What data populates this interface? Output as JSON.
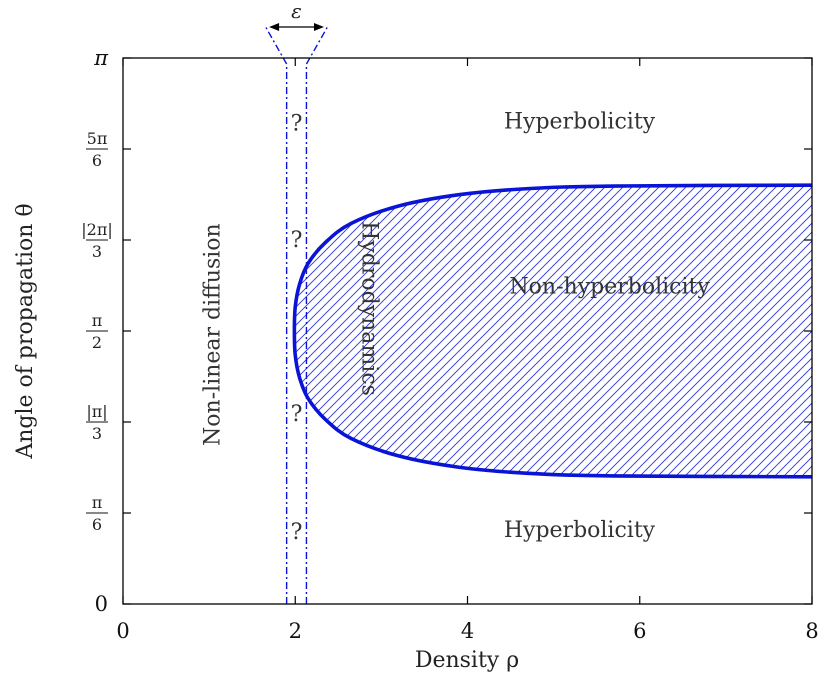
{
  "chart_data": {
    "type": "area",
    "title": "",
    "xlabel": "Density ρ",
    "ylabel": "Angle of propagation θ",
    "xlim": [
      0,
      8
    ],
    "ylim": [
      0,
      3.14159
    ],
    "x_ticks": [
      {
        "value": 0,
        "label": "0"
      },
      {
        "value": 2,
        "label": "2"
      },
      {
        "value": 4,
        "label": "4"
      },
      {
        "value": 6,
        "label": "6"
      },
      {
        "value": 8,
        "label": "8"
      }
    ],
    "y_ticks": [
      {
        "value": 0,
        "label": "0",
        "num": "",
        "den": ""
      },
      {
        "value": 0.5236,
        "label": "",
        "num": "π",
        "den": "6"
      },
      {
        "value": 1.0472,
        "label": "",
        "num": "|π|",
        "den": "3"
      },
      {
        "value": 1.5708,
        "label": "",
        "num": "π",
        "den": "2"
      },
      {
        "value": 2.0944,
        "label": "",
        "num": "|2π|",
        "den": "3"
      },
      {
        "value": 2.618,
        "label": "",
        "num": "5π",
        "den": "6"
      },
      {
        "value": 3.14159,
        "label": "π",
        "num": "",
        "den": ""
      }
    ],
    "grid": false,
    "color": "#0a14d6",
    "region_boundary": {
      "name": "Non-hyperbolicity boundary",
      "upper": [
        {
          "x": 1.99,
          "y": 1.571
        },
        {
          "x": 2.0,
          "y": 1.71
        },
        {
          "x": 2.05,
          "y": 1.84
        },
        {
          "x": 2.15,
          "y": 1.96
        },
        {
          "x": 2.35,
          "y": 2.08
        },
        {
          "x": 2.65,
          "y": 2.19
        },
        {
          "x": 3.2,
          "y": 2.29
        },
        {
          "x": 3.9,
          "y": 2.355
        },
        {
          "x": 4.7,
          "y": 2.39
        },
        {
          "x": 5.7,
          "y": 2.405
        },
        {
          "x": 8.0,
          "y": 2.41
        }
      ],
      "lower": [
        {
          "x": 1.99,
          "y": 1.571
        },
        {
          "x": 2.0,
          "y": 1.432
        },
        {
          "x": 2.05,
          "y": 1.302
        },
        {
          "x": 2.15,
          "y": 1.182
        },
        {
          "x": 2.35,
          "y": 1.062
        },
        {
          "x": 2.65,
          "y": 0.952
        },
        {
          "x": 3.2,
          "y": 0.852
        },
        {
          "x": 3.9,
          "y": 0.787
        },
        {
          "x": 4.7,
          "y": 0.752
        },
        {
          "x": 5.7,
          "y": 0.737
        },
        {
          "x": 8.0,
          "y": 0.732
        }
      ]
    },
    "epsilon_band": {
      "x_left": 1.9,
      "x_right": 2.13,
      "top_flare": [
        1.65,
        2.38
      ],
      "label": "ε",
      "question_marks": [
        {
          "y": 2.77,
          "label": "?"
        },
        {
          "y": 2.1,
          "label": "?"
        },
        {
          "y": 1.1,
          "label": "?"
        },
        {
          "y": 0.42,
          "label": "?"
        }
      ]
    },
    "annotations": [
      {
        "text": "Hyperbolicity",
        "x": 5.3,
        "y": 2.77,
        "rotate": 0
      },
      {
        "text": "Hyperbolicity",
        "x": 5.3,
        "y": 0.42,
        "rotate": 0
      },
      {
        "text": "Non-hyperbolicity",
        "x": 5.65,
        "y": 1.82,
        "rotate": 0
      },
      {
        "text": "Non-linear diffusion",
        "x": 1.05,
        "y": 1.55,
        "rotate": -90
      },
      {
        "text": "Hydrodynamics",
        "x": 2.85,
        "y": 1.7,
        "rotate": 90
      }
    ]
  }
}
